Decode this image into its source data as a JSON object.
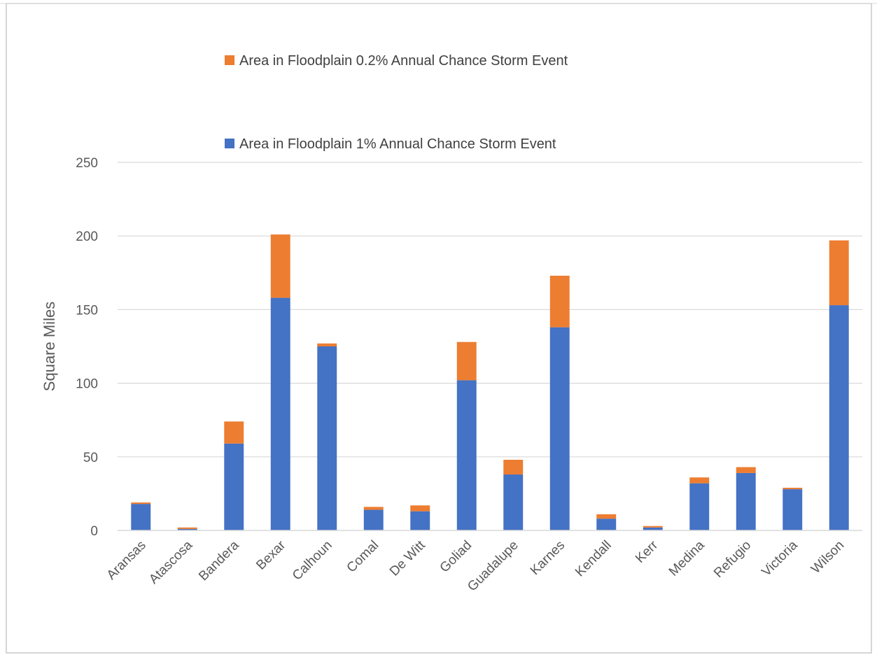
{
  "chart_data": {
    "type": "bar",
    "stacked": true,
    "title": "",
    "xlabel": "",
    "ylabel": "Square Miles",
    "ylim": [
      0,
      250
    ],
    "yticks": [
      0,
      50,
      100,
      150,
      200,
      250
    ],
    "grid": true,
    "legend_position": "top",
    "categories": [
      "Aransas",
      "Atascosa",
      "Bandera",
      "Bexar",
      "Calhoun",
      "Comal",
      "De Witt",
      "Goliad",
      "Guadalupe",
      "Karnes",
      "Kendall",
      "Kerr",
      "Medina",
      "Refugio",
      "Victoria",
      "Wilson"
    ],
    "series": [
      {
        "name": "Area in Floodplain 1% Annual Chance Storm Event",
        "color": "#4472C4",
        "values": [
          18,
          1,
          59,
          158,
          125,
          14,
          13,
          102,
          38,
          138,
          8,
          2,
          32,
          39,
          28,
          153
        ]
      },
      {
        "name": "Area in Floodplain 0.2% Annual Chance Storm Event",
        "color": "#ED7D31",
        "values": [
          1,
          1,
          15,
          43,
          2,
          2,
          4,
          26,
          10,
          35,
          3,
          1,
          4,
          4,
          1,
          44
        ]
      }
    ]
  }
}
